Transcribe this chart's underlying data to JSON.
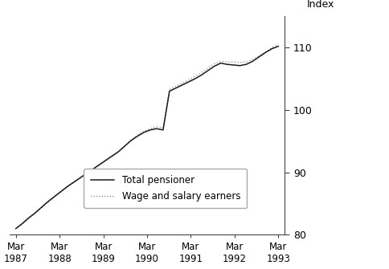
{
  "ylabel": "Index",
  "ylim": [
    80,
    115
  ],
  "yticks": [
    80,
    90,
    100,
    110
  ],
  "xtick_labels": [
    "Mar\n1987",
    "Mar\n1988",
    "Mar\n1989",
    "Mar\n1990",
    "Mar\n1991",
    "Mar\n1992",
    "Mar\n1993"
  ],
  "legend_labels": [
    "Total pensioner",
    "Wage and salary earners"
  ],
  "background_color": "#ffffff",
  "line_color": "#1a1a1a",
  "dot_color": "#888888",
  "pensioner_y": [
    81.0,
    81.8,
    82.7,
    83.5,
    84.4,
    85.3,
    86.1,
    86.9,
    87.7,
    88.4,
    89.1,
    89.8,
    90.5,
    91.2,
    91.9,
    92.6,
    93.3,
    94.2,
    95.1,
    95.8,
    96.4,
    96.8,
    97.0,
    96.8,
    103.0,
    103.5,
    104.0,
    104.5,
    105.0,
    105.6,
    106.3,
    107.0,
    107.5,
    107.3,
    107.2,
    107.1,
    107.3,
    107.8,
    108.5,
    109.2,
    109.8,
    110.2
  ],
  "wage_y": [
    81.0,
    81.7,
    82.6,
    83.4,
    84.3,
    85.2,
    86.0,
    86.8,
    87.6,
    88.3,
    89.0,
    89.7,
    90.4,
    91.1,
    91.8,
    92.5,
    93.2,
    94.2,
    95.2,
    96.0,
    96.6,
    97.0,
    97.3,
    97.2,
    103.3,
    103.8,
    104.3,
    104.8,
    105.4,
    106.0,
    106.7,
    107.4,
    107.8,
    107.7,
    107.7,
    107.6,
    107.7,
    108.1,
    108.7,
    109.3,
    110.0,
    110.5
  ]
}
